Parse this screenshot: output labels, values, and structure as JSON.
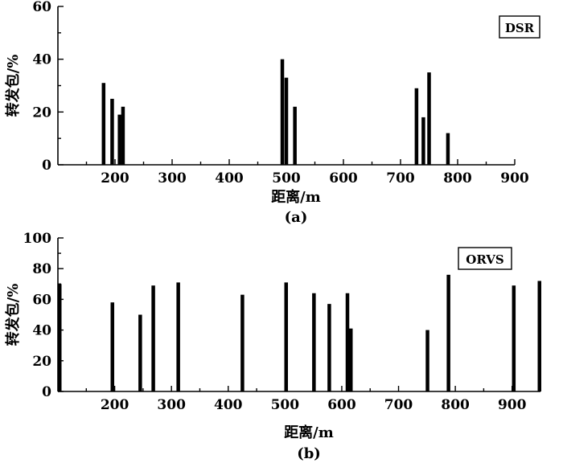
{
  "chart_data": [
    {
      "type": "bar",
      "panel": "a",
      "caption": "(a)",
      "legend": "DSR",
      "legend_position": "top-right",
      "xlabel": "距离/m",
      "ylabel": "转发包/%",
      "xlim": [
        100,
        900
      ],
      "ylim": [
        0,
        60
      ],
      "x_ticks": [
        200,
        300,
        400,
        500,
        600,
        700,
        800,
        900
      ],
      "y_ticks": [
        0,
        20,
        40,
        60
      ],
      "grid": false,
      "points": [
        {
          "x": 180,
          "y": 31
        },
        {
          "x": 195,
          "y": 25
        },
        {
          "x": 208,
          "y": 19
        },
        {
          "x": 214,
          "y": 22
        },
        {
          "x": 493,
          "y": 40
        },
        {
          "x": 500,
          "y": 33
        },
        {
          "x": 515,
          "y": 22
        },
        {
          "x": 728,
          "y": 29
        },
        {
          "x": 740,
          "y": 18
        },
        {
          "x": 750,
          "y": 35
        },
        {
          "x": 783,
          "y": 12
        }
      ]
    },
    {
      "type": "bar",
      "panel": "b",
      "caption": "(b)",
      "legend": "ORVS",
      "legend_position": "top-right",
      "xlabel": "距离/m",
      "ylabel": "转发包/%",
      "xlim": [
        100,
        950
      ],
      "ylim": [
        0,
        100
      ],
      "x_ticks": [
        200,
        300,
        400,
        500,
        600,
        700,
        800,
        900
      ],
      "y_ticks": [
        0,
        20,
        40,
        60,
        80,
        100
      ],
      "grid": false,
      "points": [
        {
          "x": 103,
          "y": 70
        },
        {
          "x": 196,
          "y": 58
        },
        {
          "x": 245,
          "y": 50
        },
        {
          "x": 268,
          "y": 69
        },
        {
          "x": 312,
          "y": 71
        },
        {
          "x": 425,
          "y": 63
        },
        {
          "x": 502,
          "y": 71
        },
        {
          "x": 551,
          "y": 64
        },
        {
          "x": 578,
          "y": 57
        },
        {
          "x": 610,
          "y": 64
        },
        {
          "x": 616,
          "y": 41
        },
        {
          "x": 751,
          "y": 40
        },
        {
          "x": 788,
          "y": 76
        },
        {
          "x": 903,
          "y": 69
        },
        {
          "x": 950,
          "y": 72
        }
      ]
    }
  ]
}
